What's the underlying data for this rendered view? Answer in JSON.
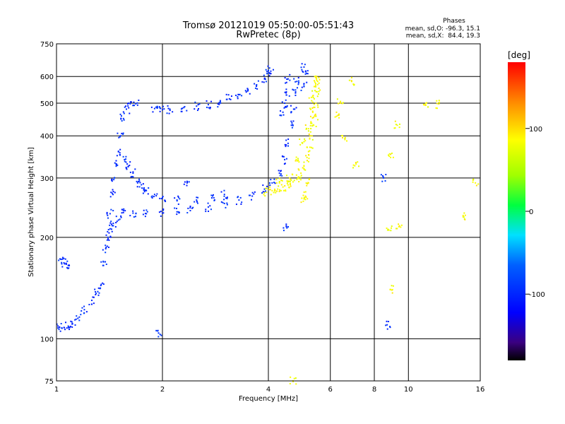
{
  "chart_data": {
    "type": "scatter",
    "title": "Tromsø 20121019 05:50:00-05:51:43",
    "subtitle": "RwPretec (8p)",
    "xlabel": "Frequency [MHz]",
    "ylabel": "Stationary phase Virtual Height [km]",
    "x_scale": "log",
    "y_scale": "log",
    "xlim": [
      1,
      16
    ],
    "ylim": [
      75,
      750
    ],
    "x_ticks": [
      1,
      2,
      4,
      6,
      8,
      10,
      16
    ],
    "x_tick_labels": [
      "1",
      "2",
      "4",
      "6",
      "8",
      "10",
      "16"
    ],
    "y_ticks": [
      75,
      100,
      200,
      300,
      400,
      500,
      600,
      750
    ],
    "y_tick_labels": [
      "75",
      "100",
      "200",
      "300",
      "400",
      "500",
      "600",
      "750"
    ],
    "grid": true,
    "stats": {
      "heading": "Phases",
      "line_o": "mean, sd,O: -96.3, 15.1",
      "line_x": "mean, sd,X:  84.4, 19.3"
    },
    "colorbar": {
      "label": "[deg]",
      "range": [
        -180,
        180
      ],
      "ticks": [
        100,
        0,
        -100
      ],
      "tick_labels": [
        "100",
        "0",
        "-100"
      ]
    },
    "series": [
      {
        "mode": "O",
        "phase_mean": -96.3,
        "points": [
          [
            1.02,
            108
          ],
          [
            1.05,
            108
          ],
          [
            1.08,
            109
          ],
          [
            1.11,
            111
          ],
          [
            1.15,
            115
          ],
          [
            1.2,
            122
          ],
          [
            1.26,
            130
          ],
          [
            1.31,
            138
          ],
          [
            1.34,
            145
          ],
          [
            1.36,
            165
          ],
          [
            1.38,
            185
          ],
          [
            1.4,
            200
          ],
          [
            1.42,
            212
          ],
          [
            1.45,
            220
          ],
          [
            1.5,
            225
          ],
          [
            1.03,
            172
          ],
          [
            1.05,
            168
          ],
          [
            1.08,
            165
          ],
          [
            1.42,
            235
          ],
          [
            1.44,
            270
          ],
          [
            1.46,
            300
          ],
          [
            1.48,
            330
          ],
          [
            1.5,
            360
          ],
          [
            1.52,
            400
          ],
          [
            1.55,
            450
          ],
          [
            1.58,
            480
          ],
          [
            1.62,
            498
          ],
          [
            1.68,
            498
          ],
          [
            1.56,
            340
          ],
          [
            1.6,
            325
          ],
          [
            1.65,
            310
          ],
          [
            1.7,
            290
          ],
          [
            1.75,
            280
          ],
          [
            1.8,
            275
          ],
          [
            1.9,
            268
          ],
          [
            2.0,
            262
          ],
          [
            2.2,
            258
          ],
          [
            2.5,
            258
          ],
          [
            2.8,
            262
          ],
          [
            3.0,
            268
          ],
          [
            1.55,
            240
          ],
          [
            1.65,
            236
          ],
          [
            1.8,
            235
          ],
          [
            2.0,
            236
          ],
          [
            2.2,
            238
          ],
          [
            2.4,
            240
          ],
          [
            2.7,
            246
          ],
          [
            3.0,
            252
          ],
          [
            3.3,
            258
          ],
          [
            3.6,
            265
          ],
          [
            3.9,
            278
          ],
          [
            4.1,
            290
          ],
          [
            4.3,
            310
          ],
          [
            4.45,
            340
          ],
          [
            4.55,
            380
          ],
          [
            4.65,
            430
          ],
          [
            4.72,
            480
          ],
          [
            4.78,
            540
          ],
          [
            4.82,
            580
          ],
          [
            1.9,
            482
          ],
          [
            2.0,
            478
          ],
          [
            2.1,
            480
          ],
          [
            2.3,
            485
          ],
          [
            2.5,
            490
          ],
          [
            2.7,
            495
          ],
          [
            2.9,
            502
          ],
          [
            3.1,
            515
          ],
          [
            3.3,
            530
          ],
          [
            3.5,
            545
          ],
          [
            3.7,
            565
          ],
          [
            3.9,
            590
          ],
          [
            4.05,
            612
          ],
          [
            4.0,
            625
          ],
          [
            4.4,
            470
          ],
          [
            4.45,
            500
          ],
          [
            4.5,
            540
          ],
          [
            4.55,
            590
          ],
          [
            5.05,
            560
          ],
          [
            5.1,
            610
          ],
          [
            5.05,
            640
          ],
          [
            1.95,
            104
          ],
          [
            2.35,
            290
          ],
          [
            4.5,
            215
          ],
          [
            8.7,
            110
          ],
          [
            8.5,
            300
          ]
        ]
      },
      {
        "mode": "X",
        "phase_mean": 84.4,
        "points": [
          [
            3.95,
            272
          ],
          [
            4.1,
            275
          ],
          [
            4.25,
            278
          ],
          [
            4.4,
            282
          ],
          [
            4.55,
            286
          ],
          [
            4.7,
            292
          ],
          [
            4.85,
            300
          ],
          [
            4.95,
            310
          ],
          [
            5.05,
            325
          ],
          [
            5.15,
            345
          ],
          [
            5.25,
            370
          ],
          [
            5.32,
            400
          ],
          [
            5.38,
            430
          ],
          [
            5.42,
            460
          ],
          [
            5.46,
            500
          ],
          [
            5.5,
            540
          ],
          [
            5.52,
            580
          ],
          [
            5.48,
            590
          ],
          [
            4.8,
            340
          ],
          [
            5.0,
            380
          ],
          [
            5.2,
            420
          ],
          [
            5.35,
            470
          ],
          [
            4.6,
            300
          ],
          [
            5.3,
            520
          ],
          [
            5.4,
            560
          ],
          [
            5.2,
            290
          ],
          [
            4.3,
            290
          ],
          [
            5.1,
            265
          ],
          [
            4.7,
            75
          ],
          [
            5.05,
            260
          ],
          [
            6.3,
            460
          ],
          [
            6.9,
            580
          ],
          [
            6.4,
            500
          ],
          [
            6.6,
            390
          ],
          [
            7.1,
            330
          ],
          [
            8.8,
            210
          ],
          [
            9.4,
            215
          ],
          [
            8.9,
            345
          ],
          [
            9.3,
            430
          ],
          [
            8.9,
            140
          ],
          [
            11.2,
            493
          ],
          [
            12.2,
            497
          ],
          [
            14.3,
            230
          ],
          [
            15.5,
            290
          ]
        ]
      }
    ]
  }
}
